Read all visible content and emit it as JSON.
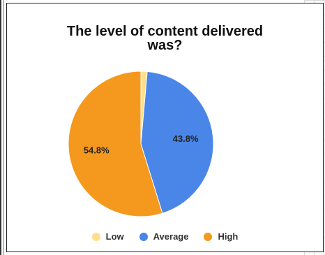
{
  "chart_data": {
    "type": "pie",
    "title_line1": "The level of content delivered",
    "title_line2": "was?",
    "slices": [
      {
        "name": "Low",
        "percent": 1.4,
        "color": "#ffe08a"
      },
      {
        "name": "Average",
        "percent": 43.8,
        "color": "#4a86e8",
        "label": "43.8%"
      },
      {
        "name": "High",
        "percent": 54.8,
        "color": "#f4991d",
        "label": "54.8%"
      }
    ],
    "legend_position": "bottom"
  }
}
